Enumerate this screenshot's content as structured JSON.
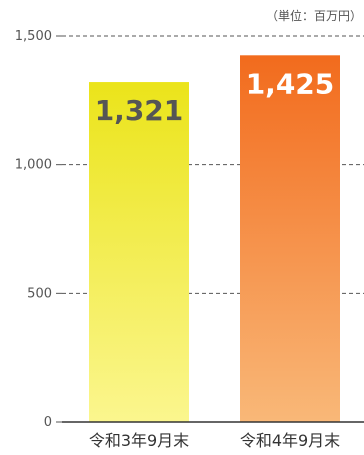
{
  "chart_data": {
    "type": "bar",
    "unit": "（単位：百万円）",
    "categories": [
      "令和3年9月末",
      "令和4年9月末"
    ],
    "values": [
      1321,
      1425
    ],
    "data_labels": [
      "1,321",
      "1,425"
    ],
    "ylim": [
      0,
      1500
    ],
    "yticks": [
      0,
      500,
      1000,
      1500
    ],
    "ytick_labels": [
      "0",
      "500",
      "1,000",
      "1,500"
    ],
    "grid": true,
    "colors": {
      "bar1_top": "#ebe41a",
      "bar1_bottom": "#fbf68e",
      "bar2_top": "#f26b1d",
      "bar2_bottom": "#f9b878",
      "label1": "#555555",
      "label2": "#ffffff",
      "grid": "#555555",
      "axis": "#333333"
    }
  }
}
